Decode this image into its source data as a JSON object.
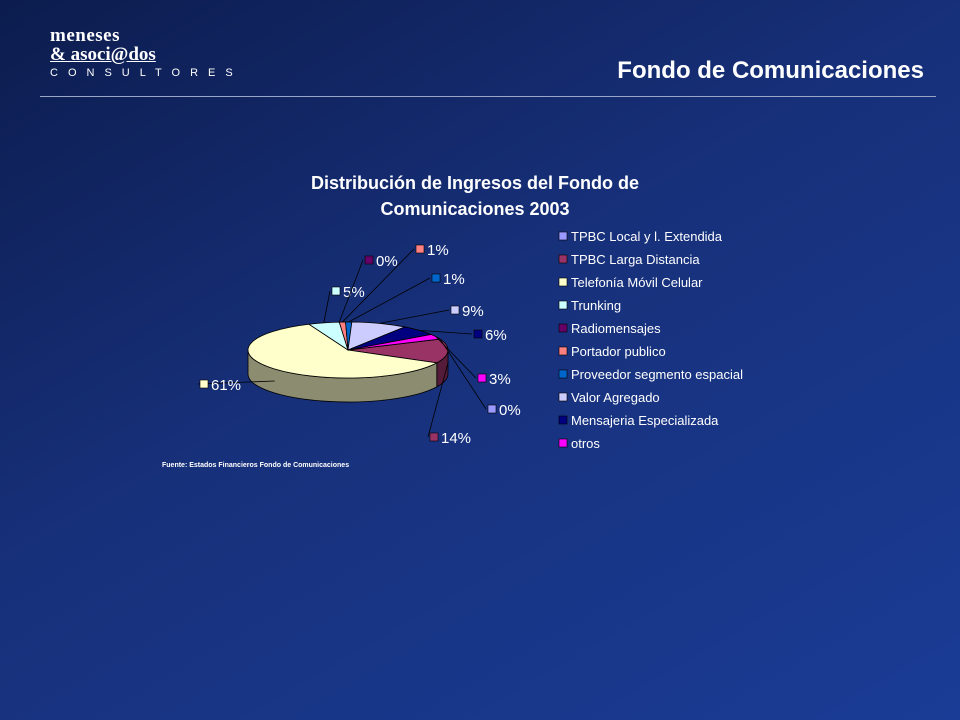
{
  "header": {
    "logo_line1": "meneses",
    "logo_line2": "& asoci@dos",
    "logo_line3": "CONSULTORES",
    "page_title": "Fondo de Comunicaciones"
  },
  "chart_data": {
    "type": "pie",
    "title_line1": "Distribución de Ingresos del Fondo de",
    "title_line2": "Comunicaciones  2003",
    "source": "Fuente: Estados Financieros  Fondo de Comunicaciones",
    "legend_position": "right",
    "slices": [
      {
        "name": "TPBC Local y l. Extendida",
        "value": 0,
        "label": "0%",
        "color": "#9999ff"
      },
      {
        "name": "TPBC Larga Distancia",
        "value": 14,
        "label": "14%",
        "color": "#993366"
      },
      {
        "name": "Telefonía Móvil Celular",
        "value": 61,
        "label": "61%",
        "color": "#ffffcc"
      },
      {
        "name": "Trunking",
        "value": 5,
        "label": "5%",
        "color": "#ccffff"
      },
      {
        "name": "Radiomensajes",
        "value": 0,
        "label": "0%",
        "color": "#660066"
      },
      {
        "name": "Portador publico",
        "value": 1,
        "label": "1%",
        "color": "#ff8080"
      },
      {
        "name": "Proveedor segmento espacial",
        "value": 1,
        "label": "1%",
        "color": "#0066cc"
      },
      {
        "name": "Valor Agregado",
        "value": 9,
        "label": "9%",
        "color": "#ccccff"
      },
      {
        "name": "Mensajeria Especializada",
        "value": 6,
        "label": "6%",
        "color": "#000080"
      },
      {
        "name": "otros",
        "value": 3,
        "label": "3%",
        "color": "#ff00ff"
      }
    ]
  }
}
